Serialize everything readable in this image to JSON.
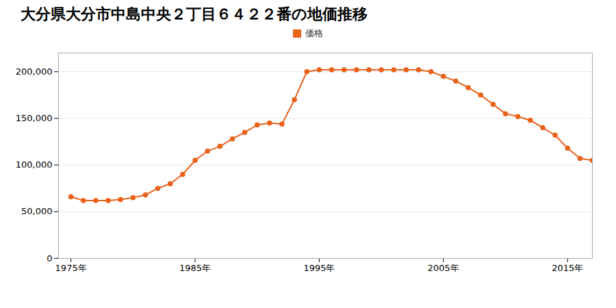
{
  "chart_data": {
    "type": "line",
    "title": "大分県大分市中島中央２丁目６４２２番の地価推移",
    "x": [
      1975,
      1976,
      1977,
      1978,
      1979,
      1980,
      1981,
      1982,
      1983,
      1984,
      1985,
      1986,
      1987,
      1988,
      1989,
      1990,
      1991,
      1992,
      1993,
      1994,
      1995,
      1996,
      1997,
      1998,
      1999,
      2000,
      2001,
      2002,
      2003,
      2004,
      2005,
      2006,
      2007,
      2008,
      2009,
      2010,
      2011,
      2012,
      2013,
      2014,
      2015,
      2016,
      2017
    ],
    "series": [
      {
        "name": "価格",
        "color": "#E8621A",
        "marker": "circle",
        "values": [
          66000,
          62000,
          62000,
          62000,
          63000,
          65000,
          68000,
          75000,
          80000,
          90000,
          105000,
          115000,
          120000,
          128000,
          135000,
          143000,
          145000,
          144000,
          170000,
          200000,
          202000,
          202000,
          202000,
          202000,
          202000,
          202000,
          202000,
          202000,
          202000,
          200000,
          195000,
          190000,
          183000,
          175000,
          165000,
          155000,
          152000,
          148000,
          140000,
          132000,
          118000,
          107000,
          105000
        ]
      }
    ],
    "xlim": [
      1974,
      2017
    ],
    "ylim": [
      0,
      220000
    ],
    "xticks": [
      {
        "value": 1975,
        "label": "1975年"
      },
      {
        "value": 1985,
        "label": "1985年"
      },
      {
        "value": 1995,
        "label": "1995年"
      },
      {
        "value": 2005,
        "label": "2005年"
      },
      {
        "value": 2015,
        "label": "2015年"
      }
    ],
    "yticks": [
      0,
      {
        "value": 50000,
        "label": "50,000"
      },
      {
        "value": 100000,
        "label": "100,000"
      },
      {
        "value": 150000,
        "label": "150,000"
      },
      {
        "value": 200000,
        "label": "200,000"
      }
    ],
    "grid": "y",
    "legend": "top"
  }
}
